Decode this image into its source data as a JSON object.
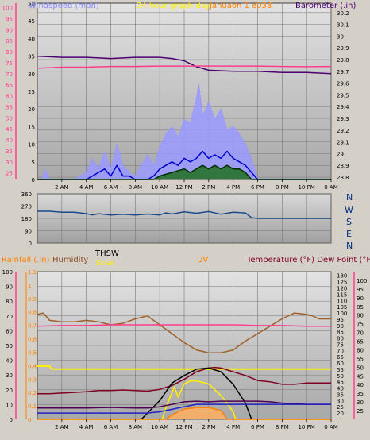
{
  "header": {
    "windspeed_label": "Windspeed (mph)",
    "title": "24 hour graph day",
    "date": "Januaon 1 e038",
    "barometer_label": "Barometer (.in)"
  },
  "wind_dir_labels": [
    "N",
    "W",
    "S",
    "E",
    "N"
  ],
  "colors": {
    "background": "#d4d0c8",
    "plot_bg_top": "#e2e2e2",
    "plot_bg_bottom": "#a8a8a8",
    "gridline": "#777777",
    "axis_left_pink": "#ff3c8c",
    "wind_gust": "#9a9aff",
    "wind_speed": "#0000d0",
    "wind_avg": "#003000",
    "wind_fill": "#207020",
    "barometer": "#500070",
    "temperature": "#800020",
    "dew_point": "#500050",
    "humidity": "#a06028",
    "thsw": "#000000",
    "solar": "#ffee00",
    "uv": "#ff8000",
    "rain": "#ffff00"
  },
  "chart_data": [
    {
      "id": "wind_barometer",
      "type": "line",
      "x_tick_labels": [
        "2 AM",
        "4 AM",
        "6 AM",
        "8 AM",
        "10 AM",
        "12 PM",
        "2 PM",
        "4 PM",
        "6 PM",
        "8 PM",
        "10 PM",
        "0 AM"
      ],
      "xlim": [
        0,
        24
      ],
      "y_left": {
        "label": "Windspeed (mph)",
        "ticks": [
          0,
          5,
          10,
          15,
          20,
          25,
          30,
          35,
          40,
          45,
          50
        ],
        "lim": [
          0,
          50
        ]
      },
      "y_left_pink_ticks": [
        25,
        30,
        35,
        40,
        45,
        50,
        55,
        60,
        65,
        70,
        75,
        80,
        85,
        90,
        95,
        100
      ],
      "y_right": {
        "label": "Barometer (.in)",
        "ticks": [
          28.8,
          28.9,
          29.0,
          29.1,
          29.2,
          29.3,
          29.4,
          29.5,
          29.6,
          29.7,
          29.8,
          29.9,
          30.0,
          30.1,
          30.2
        ],
        "tick_labels": [
          "28.8",
          "28.9",
          "29",
          "29.1",
          "29.2",
          "29.3",
          "29.4",
          "29.5",
          "29.6",
          "29.7",
          "29.8",
          "29.9",
          "30",
          "30.1",
          "30.2"
        ],
        "lim": [
          28.78,
          30.28
        ]
      },
      "grid": true,
      "series": [
        {
          "key": "barometer",
          "axis": "right",
          "color": "#500070",
          "x": [
            0,
            2,
            4,
            6,
            8,
            10,
            11,
            12,
            13,
            14,
            16,
            18,
            20,
            22,
            24
          ],
          "y": [
            29.83,
            29.82,
            29.82,
            29.81,
            29.82,
            29.82,
            29.81,
            29.79,
            29.74,
            29.71,
            29.7,
            29.7,
            29.69,
            29.69,
            29.68
          ]
        },
        {
          "key": "pink_trace",
          "axis": "left_pink",
          "color": "#ff3c8c",
          "x": [
            0,
            2,
            4,
            6,
            8,
            10,
            12,
            14,
            16,
            18,
            20,
            22,
            24
          ],
          "y": [
            72.5,
            73.0,
            73.0,
            73.3,
            73.3,
            73.5,
            73.5,
            73.5,
            73.5,
            73.5,
            73.3,
            73.2,
            73.3
          ]
        },
        {
          "key": "wind_gust",
          "axis": "left",
          "color": "#9a9aff",
          "x": [
            0,
            0.4,
            0.6,
            1,
            2,
            3,
            4,
            4.5,
            5,
            5.5,
            6,
            6.5,
            7,
            7.5,
            8,
            8.5,
            9,
            9.5,
            10,
            10.5,
            11,
            11.5,
            12,
            12.5,
            13,
            13.2,
            13.5,
            14,
            14.5,
            15,
            15.5,
            16,
            16.5,
            17,
            17.5,
            18,
            24
          ],
          "y": [
            0,
            0,
            3,
            0,
            0,
            0,
            2,
            6,
            3,
            8,
            3,
            10,
            4,
            2,
            1,
            4,
            7,
            4,
            9,
            13,
            15,
            12,
            17,
            16,
            23,
            27,
            18,
            22,
            17,
            20,
            14,
            15,
            13,
            10,
            6,
            0,
            0
          ]
        },
        {
          "key": "wind_speed",
          "axis": "left",
          "color": "#0000d0",
          "x": [
            0,
            3,
            4,
            4.5,
            5,
            5.5,
            6,
            6.5,
            7,
            7.5,
            8,
            9,
            9.5,
            10,
            10.5,
            11,
            11.5,
            12,
            12.5,
            13,
            13.5,
            14,
            14.5,
            15,
            15.5,
            16,
            16.5,
            17,
            17.5,
            18,
            24
          ],
          "y": [
            0,
            0,
            0,
            1,
            2,
            3,
            1,
            4,
            1,
            1,
            0,
            0,
            1,
            3,
            4,
            5,
            4,
            6,
            5,
            6,
            8,
            6,
            7,
            6,
            8,
            6,
            5,
            4,
            2,
            0,
            0
          ]
        },
        {
          "key": "wind_avg",
          "axis": "left",
          "color": "#003000",
          "x": [
            0,
            9.5,
            10,
            11,
            12,
            12.5,
            13,
            13.5,
            14,
            14.5,
            15,
            15.5,
            16,
            16.5,
            17,
            17.5,
            24
          ],
          "y": [
            0,
            0,
            1,
            2,
            3,
            2,
            3,
            4,
            3,
            4,
            3,
            4,
            3,
            3,
            2,
            0,
            0
          ]
        }
      ]
    },
    {
      "id": "wind_direction",
      "type": "line",
      "x_tick_labels": [
        "2 AM",
        "4 AM",
        "6 AM",
        "8 AM",
        "10 AM",
        "12 PM",
        "2 PM",
        "4 PM",
        "6 PM",
        "8 PM",
        "10 PM",
        "0 AM"
      ],
      "xlim": [
        0,
        24
      ],
      "y_left": {
        "ticks": [
          0,
          90,
          180,
          270,
          360
        ],
        "lim": [
          0,
          360
        ]
      },
      "y_right_labels": [
        "N",
        "W",
        "S",
        "E",
        "N"
      ],
      "grid": true,
      "series": [
        {
          "key": "wind_direction",
          "axis": "left",
          "color": "#1a4a8a",
          "x": [
            0,
            1,
            2,
            3,
            4,
            4.5,
            5,
            6,
            7,
            8,
            9,
            10,
            10.5,
            11,
            12,
            13,
            14,
            15,
            16,
            17,
            17.5,
            18,
            20,
            22,
            24
          ],
          "y": [
            232,
            232,
            225,
            225,
            215,
            205,
            214,
            205,
            210,
            205,
            212,
            205,
            220,
            212,
            228,
            218,
            230,
            210,
            225,
            220,
            185,
            180,
            180,
            180,
            180
          ]
        }
      ]
    },
    {
      "id": "temp_humidity_solar",
      "type": "line",
      "legend": [
        "Rainfall (.in)",
        "Humidity",
        "THSW",
        "Solar",
        "UV",
        "Temperature (°F) Dew Point (°F)"
      ],
      "x_tick_labels": [
        "2 AM",
        "4 AM",
        "6 AM",
        "8 AM",
        "10 AM",
        "12 PM",
        "2 PM",
        "4 PM",
        "6 PM",
        "8 PM",
        "10 PM",
        "0 AM"
      ],
      "xlim": [
        0,
        24
      ],
      "y_rainfall": {
        "label": "Rainfall (.in)",
        "ticks": [
          0,
          10,
          20,
          30,
          40,
          50,
          60,
          70,
          80,
          90,
          100
        ],
        "lim": [
          0,
          100
        ]
      },
      "y_humidity": {
        "label": "Humidity",
        "ticks": [
          0,
          0.1,
          0.2,
          0.3,
          0.4,
          0.5,
          0.6,
          0.7,
          0.8,
          0.9,
          1,
          1.1
        ],
        "tick_labels": [
          "0",
          "0.1",
          "0.2",
          "0.3",
          "0.4",
          "0.5",
          "0.6",
          "0.7",
          "0.8",
          "0.9",
          "1",
          "1.1"
        ],
        "lim": [
          0,
          1.1
        ]
      },
      "y_temperature": {
        "label": "Temperature (°F)",
        "ticks": [
          20,
          25,
          30,
          35,
          40,
          45,
          50,
          55,
          60,
          65,
          70,
          75,
          80,
          85,
          90,
          95,
          100,
          105,
          110,
          115,
          120,
          125,
          130
        ],
        "lim": [
          15,
          133
        ]
      },
      "y_dewpoint_ticks": [
        25,
        30,
        35,
        40,
        45,
        50,
        55,
        60,
        65,
        70,
        75,
        80,
        85,
        90,
        95,
        100
      ],
      "grid": true,
      "series": [
        {
          "key": "humidity_trace",
          "axis": "rainfall",
          "color": "#a06028",
          "x": [
            0,
            0.5,
            1,
            2,
            3,
            4,
            5,
            6,
            7,
            8,
            9,
            10,
            11,
            12,
            13,
            14,
            15,
            16,
            17,
            18,
            19,
            20,
            21,
            22,
            22.5,
            23,
            24
          ],
          "y": [
            71,
            72,
            67,
            66,
            66,
            67,
            66,
            64,
            65,
            68,
            70,
            64,
            58,
            52,
            47,
            45,
            45,
            47,
            53,
            58,
            63,
            68,
            72,
            71,
            70,
            68,
            68
          ]
        },
        {
          "key": "pink_line",
          "axis": "rainfall",
          "color": "#ff3c8c",
          "x": [
            0,
            2,
            4,
            6,
            8,
            10,
            12,
            14,
            16,
            18,
            20,
            22,
            24
          ],
          "y": [
            63,
            63.5,
            63.5,
            64,
            64,
            64,
            64,
            64,
            64,
            63.5,
            63.5,
            63,
            63
          ]
        },
        {
          "key": "rain_line",
          "axis": "rainfall",
          "color": "#ffee00",
          "x": [
            0,
            1,
            1.2,
            24
          ],
          "y": [
            36,
            36,
            34,
            34
          ]
        },
        {
          "key": "temperature",
          "axis": "temperature",
          "color": "#800020",
          "x": [
            0,
            1,
            2,
            3,
            4,
            5,
            6,
            7,
            8,
            9,
            10,
            11,
            12,
            13,
            14,
            14.5,
            15,
            16,
            17,
            18,
            19,
            20,
            21,
            22,
            23,
            24
          ],
          "y": [
            35.5,
            35.5,
            36,
            36.5,
            37,
            38,
            38,
            38.5,
            38,
            37.5,
            39,
            42,
            47,
            53,
            56,
            56.5,
            56,
            53,
            50,
            46,
            45,
            43,
            43,
            44,
            44,
            44
          ]
        },
        {
          "key": "thsw",
          "axis": "temperature",
          "color": "#000000",
          "x": [
            8.5,
            10,
            11,
            12,
            13,
            14,
            15,
            16,
            17,
            17.5
          ],
          "y": [
            15,
            30,
            44,
            50,
            55,
            56,
            53,
            43,
            28,
            15
          ]
        },
        {
          "key": "solar",
          "axis": "rainfall",
          "color": "#ffee00",
          "x": [
            0,
            10.2,
            10.5,
            11,
            11.2,
            11.5,
            12,
            12.5,
            13,
            13.5,
            14,
            14.5,
            15,
            15.5,
            16,
            16.2,
            24
          ],
          "y": [
            0,
            0,
            8,
            18,
            22,
            15,
            24,
            26,
            26,
            25,
            24,
            20,
            16,
            11,
            5,
            0,
            0
          ]
        },
        {
          "key": "uv",
          "axis": "rainfall",
          "color": "#ff8000",
          "x": [
            0,
            10.5,
            11,
            12,
            13,
            14,
            15,
            15.5,
            24
          ],
          "y": [
            0,
            0,
            3,
            7,
            8,
            8,
            6,
            0,
            0
          ]
        },
        {
          "key": "dew_point",
          "axis": "temperature",
          "color": "#500050",
          "x": [
            0,
            2,
            4,
            6,
            8,
            9,
            10,
            11,
            12,
            13,
            14,
            15,
            16,
            17,
            18,
            19,
            20,
            21,
            22,
            23,
            24
          ],
          "y": [
            24,
            24,
            24,
            24.5,
            24,
            24,
            25,
            27,
            29,
            29.5,
            29,
            29.5,
            29.5,
            29.5,
            29.5,
            29,
            28,
            27.5,
            27,
            27,
            27
          ]
        },
        {
          "key": "blue_temp_line",
          "axis": "temperature",
          "color": "#2020c0",
          "x": [
            0,
            8,
            9,
            10,
            11,
            12,
            13,
            14,
            15,
            16,
            24
          ],
          "y": [
            20,
            20,
            20,
            21,
            23,
            25,
            27,
            27,
            27,
            27,
            27
          ]
        }
      ]
    }
  ]
}
